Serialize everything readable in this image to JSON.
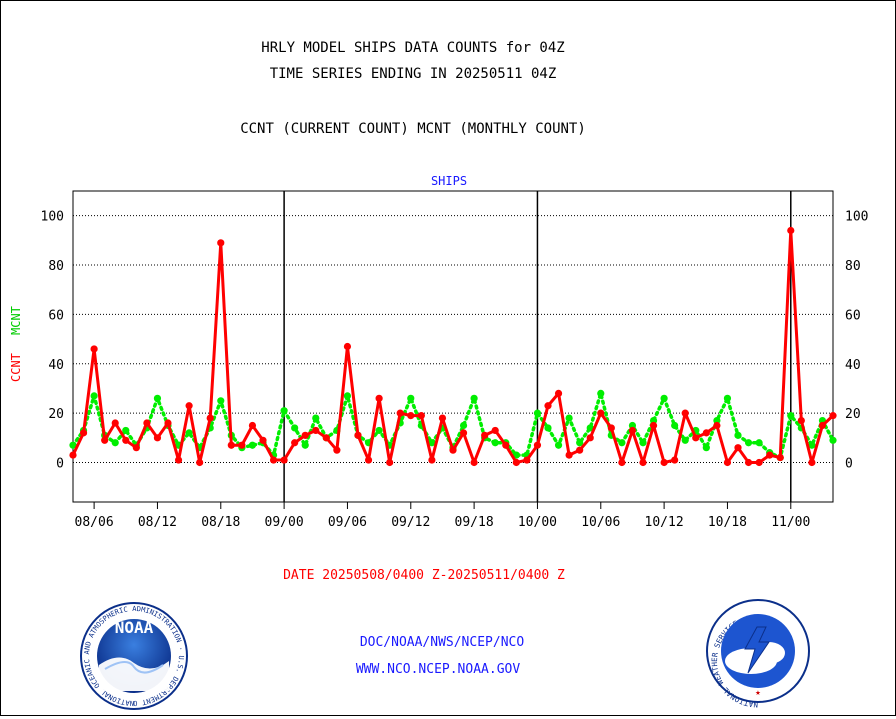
{
  "chart_data": {
    "type": "line",
    "title_line1": "HRLY MODEL SHIPS DATA COUNTS for 04Z",
    "title_line2": "TIME SERIES ENDING IN 20250511 04Z",
    "title_line3": "CCNT (CURRENT COUNT) MCNT (MONTHLY COUNT)",
    "panel_label": "SHIPS",
    "ylabel_ccnt": "CCNT",
    "ylabel_mcnt": "MCNT",
    "ylim": [
      -16,
      110
    ],
    "yticks": [
      0,
      20,
      40,
      60,
      80,
      100
    ],
    "grid": true,
    "x_tick_labels": [
      "08/06",
      "08/12",
      "08/18",
      "09/00",
      "09/06",
      "09/12",
      "09/18",
      "10/00",
      "10/06",
      "10/12",
      "10/18",
      "11/00"
    ],
    "x_tick_hours": [
      2,
      8,
      14,
      20,
      26,
      32,
      38,
      44,
      50,
      56,
      62,
      68
    ],
    "day_boundaries_hours": [
      20,
      44,
      68
    ],
    "x_range_hours": [
      0,
      72
    ],
    "series": [
      {
        "name": "CCNT",
        "color": "#ff0000",
        "style": "solid",
        "values": [
          3,
          12,
          46,
          9,
          16,
          9,
          6,
          16,
          10,
          16,
          1,
          23,
          0,
          18,
          89,
          7,
          7,
          15,
          9,
          1,
          1,
          8,
          11,
          13,
          10,
          5,
          47,
          11,
          1,
          26,
          0,
          20,
          19,
          19,
          1,
          18,
          5,
          12,
          0,
          11,
          13,
          7,
          0,
          1,
          7,
          23,
          28,
          3,
          5,
          10,
          20,
          14,
          0,
          13,
          0,
          15,
          0,
          1,
          20,
          10,
          12,
          15,
          0,
          6,
          0,
          0,
          3,
          2,
          94,
          17,
          0,
          15,
          19
        ]
      },
      {
        "name": "MCNT",
        "color": "#00ee00",
        "style": "dotted",
        "values": [
          7,
          13,
          27,
          11,
          8,
          13,
          7,
          14,
          26,
          15,
          7,
          12,
          6,
          14,
          25,
          11,
          6,
          7,
          8,
          3,
          21,
          14,
          7,
          18,
          10,
          13,
          27,
          11,
          8,
          13,
          7,
          16,
          26,
          15,
          8,
          14,
          6,
          15,
          26,
          10,
          8,
          8,
          3,
          3,
          20,
          14,
          7,
          18,
          8,
          14,
          28,
          11,
          8,
          15,
          8,
          17,
          26,
          15,
          9,
          13,
          6,
          17,
          26,
          11,
          8,
          8,
          4,
          2,
          19,
          14,
          7,
          17,
          9
        ]
      }
    ]
  },
  "footer": {
    "date_range": "DATE 20250508/0400 Z-20250511/0400 Z",
    "org": "DOC/NOAA/NWS/NCEP/NCO",
    "url": "WWW.NCO.NCEP.NOAA.GOV"
  },
  "logos": {
    "noaa_text": "NOAA",
    "noaa_ring_text": "NATIONAL OCEANIC AND ATMOSPHERIC ADMINISTRATION · U.S. DEPARTMENT OF COMMERCE",
    "nws_ring_text": "NATIONAL WEATHER SERVICE"
  }
}
